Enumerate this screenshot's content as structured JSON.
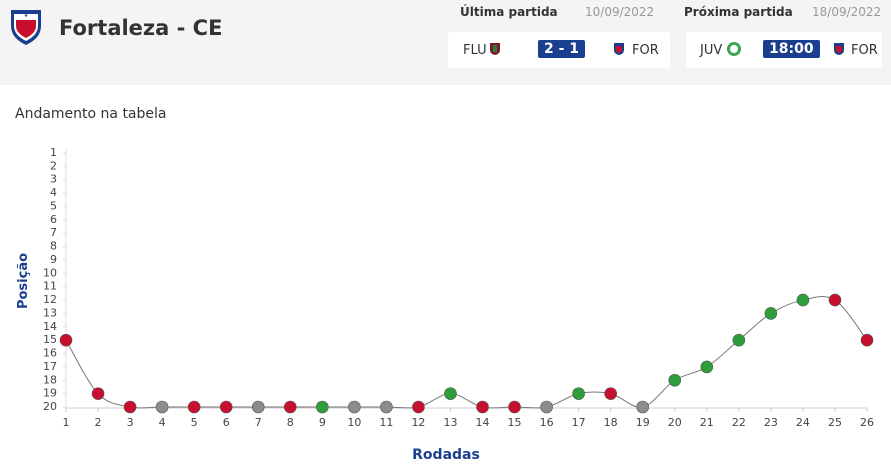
{
  "header": {
    "team": "Fortaleza - CE",
    "last_label": "Última partida",
    "last_date": "10/09/2022",
    "next_label": "Próxima partida",
    "next_date": "18/09/2022",
    "last_match": {
      "home": "FLU",
      "score": "2 - 1",
      "away": "FOR"
    },
    "next_match": {
      "home": "JUV",
      "time": "18:00",
      "away": "FOR"
    }
  },
  "chart_data": {
    "type": "line",
    "title": "Andamento na tabela",
    "x_label": "Rodadas",
    "y_label": "Posição",
    "x": [
      1,
      2,
      3,
      4,
      5,
      6,
      7,
      8,
      9,
      10,
      11,
      12,
      13,
      14,
      15,
      16,
      17,
      18,
      19,
      20,
      21,
      22,
      23,
      24,
      25,
      26
    ],
    "values": [
      15,
      19,
      20,
      20,
      20,
      20,
      20,
      20,
      20,
      20,
      20,
      20,
      19,
      20,
      20,
      20,
      19,
      19,
      20,
      18,
      17,
      15,
      13,
      12,
      12,
      15
    ],
    "point_colors": [
      "#c8102e",
      "#c8102e",
      "#c8102e",
      "#8c8c8c",
      "#c8102e",
      "#c8102e",
      "#8c8c8c",
      "#c8102e",
      "#2e9e3a",
      "#8c8c8c",
      "#8c8c8c",
      "#c8102e",
      "#2e9e3a",
      "#c8102e",
      "#c8102e",
      "#8c8c8c",
      "#2e9e3a",
      "#c8102e",
      "#8c8c8c",
      "#2e9e3a",
      "#2e9e3a",
      "#2e9e3a",
      "#2e9e3a",
      "#2e9e3a",
      "#c8102e",
      "#c8102e"
    ],
    "line_color": "#777777",
    "xlim": [
      1,
      26
    ],
    "xticks": [
      1,
      2,
      3,
      4,
      5,
      6,
      7,
      8,
      9,
      10,
      11,
      12,
      13,
      14,
      15,
      16,
      17,
      18,
      19,
      20,
      21,
      22,
      23,
      24,
      25,
      26
    ],
    "ylim": [
      20,
      1
    ],
    "yticks": [
      1,
      2,
      3,
      4,
      5,
      6,
      7,
      8,
      9,
      10,
      11,
      12,
      13,
      14,
      15,
      16,
      17,
      18,
      19,
      20
    ]
  }
}
